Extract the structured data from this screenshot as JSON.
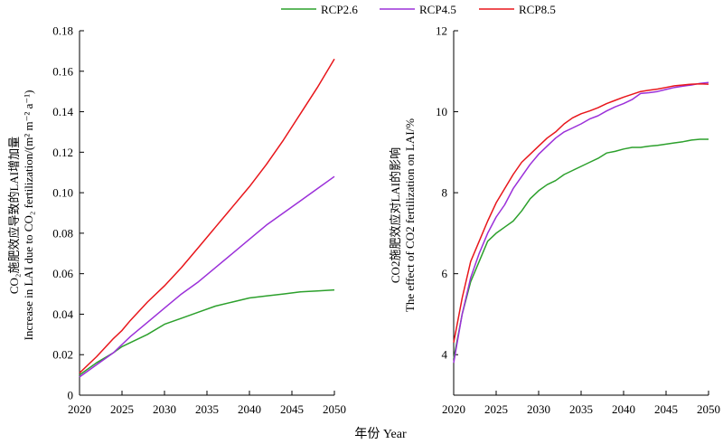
{
  "legend": {
    "placement": "top-center",
    "entries": [
      {
        "label": "RCP2.6",
        "color": "#2ca02c"
      },
      {
        "label": "RCP4.5",
        "color": "#9b30d9"
      },
      {
        "label": "RCP8.5",
        "color": "#e8161b"
      }
    ]
  },
  "shared_xlabel": "年份 Year",
  "chart_data": [
    {
      "type": "line",
      "ylabel": "CO₂施肥效应导致的LAI增加量",
      "ylabel2": "Increase in LAI due to CO₂ fertilization/(m² m⁻² a⁻¹)",
      "xlim": [
        2020,
        2050
      ],
      "ylim": [
        0,
        0.18
      ],
      "xticks": [
        "2020",
        "2025",
        "2030",
        "2035",
        "2040",
        "2045",
        "2050"
      ],
      "yticks": [
        "0",
        "0.02",
        "0.04",
        "0.06",
        "0.08",
        "0.10",
        "0.12",
        "0.14",
        "0.16",
        "0.18"
      ],
      "grid": false,
      "x": [
        2020,
        2022,
        2024,
        2025,
        2026,
        2028,
        2030,
        2032,
        2034,
        2036,
        2038,
        2040,
        2042,
        2044,
        2046,
        2048,
        2050
      ],
      "series": [
        {
          "name": "RCP2.6",
          "values": [
            0.01,
            0.016,
            0.021,
            0.024,
            0.026,
            0.03,
            0.035,
            0.038,
            0.041,
            0.044,
            0.046,
            0.048,
            0.049,
            0.05,
            0.051,
            0.0515,
            0.052
          ]
        },
        {
          "name": "RCP4.5",
          "values": [
            0.009,
            0.015,
            0.021,
            0.025,
            0.029,
            0.036,
            0.043,
            0.05,
            0.056,
            0.063,
            0.07,
            0.077,
            0.084,
            0.09,
            0.096,
            0.102,
            0.108
          ]
        },
        {
          "name": "RCP8.5",
          "values": [
            0.011,
            0.019,
            0.028,
            0.032,
            0.037,
            0.046,
            0.054,
            0.063,
            0.073,
            0.083,
            0.093,
            0.103,
            0.114,
            0.126,
            0.139,
            0.152,
            0.166
          ]
        }
      ]
    },
    {
      "type": "line",
      "ylabel": "CO2施肥效应对LAI的影响",
      "ylabel2": "The effect of CO2 fertilization on LAI/%",
      "xlim": [
        2020,
        2050
      ],
      "ylim": [
        3,
        12
      ],
      "xticks": [
        "2020",
        "2025",
        "2030",
        "2035",
        "2040",
        "2045",
        "2050"
      ],
      "yticks": [
        "4",
        "6",
        "8",
        "10",
        "12"
      ],
      "grid": false,
      "x": [
        2020,
        2021,
        2022,
        2023,
        2024,
        2025,
        2026,
        2027,
        2028,
        2029,
        2030,
        2031,
        2032,
        2033,
        2034,
        2035,
        2036,
        2037,
        2038,
        2039,
        2040,
        2041,
        2042,
        2043,
        2044,
        2045,
        2046,
        2047,
        2048,
        2049,
        2050
      ],
      "series": [
        {
          "name": "RCP2.6",
          "values": [
            3.9,
            5.0,
            5.8,
            6.3,
            6.8,
            7.0,
            7.15,
            7.3,
            7.55,
            7.85,
            8.05,
            8.2,
            8.3,
            8.45,
            8.55,
            8.65,
            8.75,
            8.85,
            8.98,
            9.02,
            9.08,
            9.12,
            9.12,
            9.15,
            9.17,
            9.2,
            9.23,
            9.26,
            9.3,
            9.32,
            9.32
          ]
        },
        {
          "name": "RCP4.5",
          "values": [
            3.8,
            5.0,
            5.9,
            6.5,
            7.0,
            7.4,
            7.7,
            8.1,
            8.4,
            8.7,
            8.95,
            9.15,
            9.35,
            9.5,
            9.6,
            9.7,
            9.82,
            9.9,
            10.02,
            10.12,
            10.2,
            10.3,
            10.45,
            10.47,
            10.5,
            10.55,
            10.6,
            10.63,
            10.66,
            10.7,
            10.72
          ]
        },
        {
          "name": "RCP8.5",
          "values": [
            4.3,
            5.4,
            6.3,
            6.8,
            7.3,
            7.75,
            8.1,
            8.45,
            8.75,
            8.95,
            9.15,
            9.35,
            9.5,
            9.7,
            9.85,
            9.95,
            10.02,
            10.1,
            10.2,
            10.28,
            10.36,
            10.43,
            10.5,
            10.53,
            10.56,
            10.6,
            10.64,
            10.66,
            10.68,
            10.69,
            10.68
          ]
        }
      ]
    }
  ]
}
